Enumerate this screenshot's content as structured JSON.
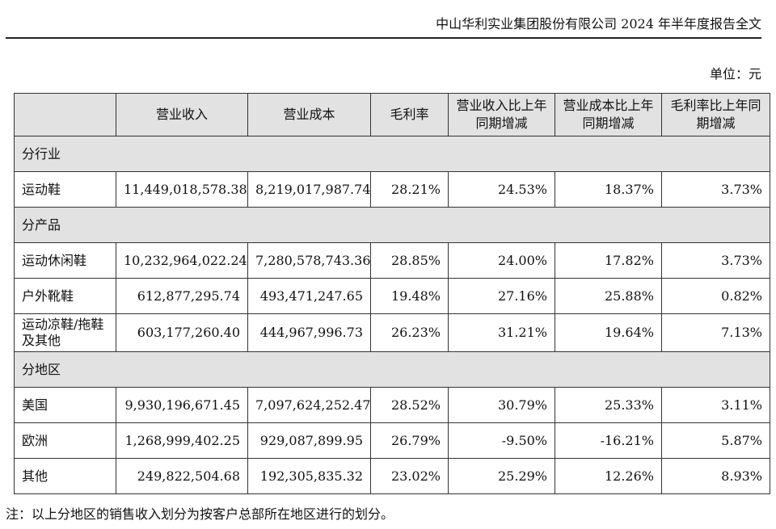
{
  "header": {
    "title": "中山华利实业集团股份有限公司 2024 年半年度报告全文"
  },
  "unit_label": "单位：元",
  "table": {
    "columns": [
      "",
      "营业收入",
      "营业成本",
      "毛利率",
      "营业收入比上年同期增减",
      "营业成本比上年同期增减",
      "毛利率比上年同期增减"
    ],
    "sections": [
      {
        "title": "分行业",
        "rows": [
          {
            "label": "运动鞋",
            "revenue": "11,449,018,578.38",
            "cost": "8,219,017,987.74",
            "margin": "28.21%",
            "revenue_change": "24.53%",
            "cost_change": "18.37%",
            "margin_change": "3.73%"
          }
        ]
      },
      {
        "title": "分产品",
        "rows": [
          {
            "label": "运动休闲鞋",
            "revenue": "10,232,964,022.24",
            "cost": "7,280,578,743.36",
            "margin": "28.85%",
            "revenue_change": "24.00%",
            "cost_change": "17.82%",
            "margin_change": "3.73%"
          },
          {
            "label": "户外靴鞋",
            "revenue": "612,877,295.74",
            "cost": "493,471,247.65",
            "margin": "19.48%",
            "revenue_change": "27.16%",
            "cost_change": "25.88%",
            "margin_change": "0.82%"
          },
          {
            "label": "运动凉鞋/拖鞋及其他",
            "revenue": "603,177,260.40",
            "cost": "444,967,996.73",
            "margin": "26.23%",
            "revenue_change": "31.21%",
            "cost_change": "19.64%",
            "margin_change": "7.13%"
          }
        ]
      },
      {
        "title": "分地区",
        "rows": [
          {
            "label": "美国",
            "revenue": "9,930,196,671.45",
            "cost": "7,097,624,252.47",
            "margin": "28.52%",
            "revenue_change": "30.79%",
            "cost_change": "25.33%",
            "margin_change": "3.11%"
          },
          {
            "label": "欧洲",
            "revenue": "1,268,999,402.25",
            "cost": "929,087,899.95",
            "margin": "26.79%",
            "revenue_change": "-9.50%",
            "cost_change": "-16.21%",
            "margin_change": "5.87%"
          },
          {
            "label": "其他",
            "revenue": "249,822,504.68",
            "cost": "192,305,835.32",
            "margin": "23.02%",
            "revenue_change": "25.29%",
            "cost_change": "12.26%",
            "margin_change": "8.93%"
          }
        ]
      }
    ]
  },
  "note": "注：以上分地区的销售收入划分为按客户总部所在地区进行的划分。"
}
